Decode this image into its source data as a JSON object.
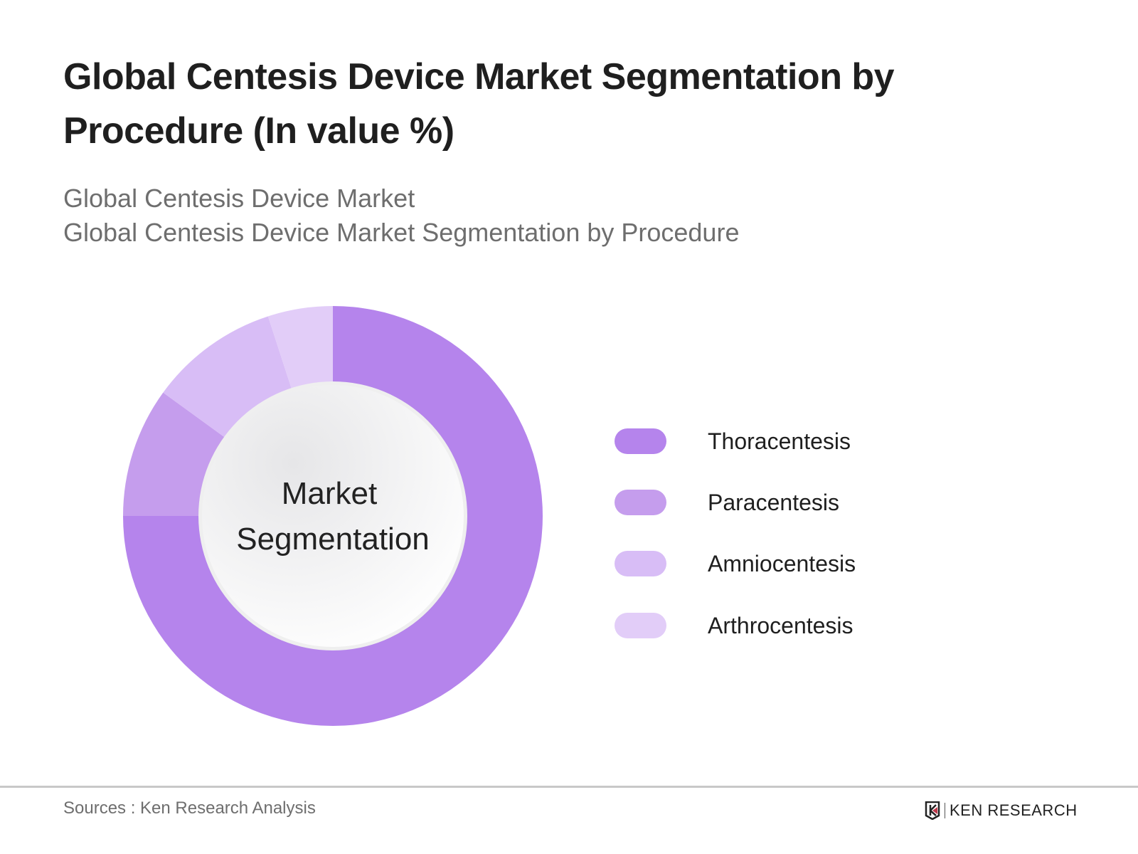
{
  "chart_data": {
    "type": "pie",
    "subtype": "donut",
    "title": "Global Centesis Device Market Segmentation by Procedure (In value %)",
    "subtitle_lines": [
      "Global Centesis Device Market",
      "Global Centesis Device Market Segmentation by Procedure"
    ],
    "center_label_lines": [
      "Market",
      "Segmentation"
    ],
    "categories": [
      "Thoracentesis",
      "Paracentesis",
      "Amniocentesis",
      "Arthrocentesis"
    ],
    "values": [
      75,
      10,
      10,
      5
    ],
    "colors": [
      "#b584ec",
      "#c59ded",
      "#d8bdf6",
      "#e2cdf8"
    ],
    "legend_position": "right"
  },
  "footer": {
    "source": "Sources : Ken Research Analysis",
    "logo_text": "KEN RESEARCH"
  }
}
